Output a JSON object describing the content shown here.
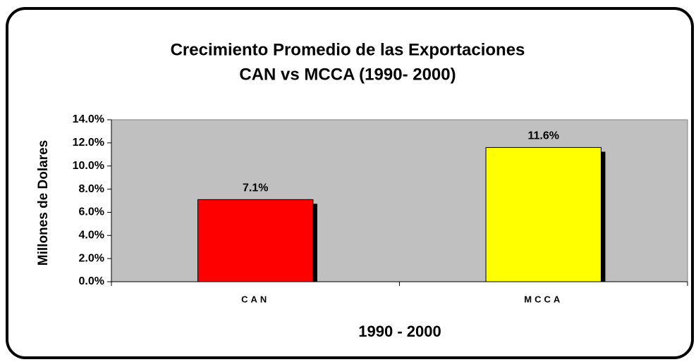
{
  "chart_data": {
    "type": "bar",
    "title": "Crecimiento Promedio de las Exportaciones",
    "subtitle": "CAN vs MCCA (1990- 2000)",
    "y_label": "Millones de Dolares",
    "x_label": "1990 - 2000",
    "categories": [
      "CAN",
      "MCCA"
    ],
    "values": [
      7.1,
      11.6
    ],
    "value_labels": [
      "7.1%",
      "11.6%"
    ],
    "colors": [
      "#ff0000",
      "#ffff00"
    ],
    "ylim": [
      0,
      14
    ],
    "yticks": [
      {
        "value": 0,
        "label": "0.0%"
      },
      {
        "value": 2,
        "label": "2.0%"
      },
      {
        "value": 4,
        "label": "4.0%"
      },
      {
        "value": 6,
        "label": "6.0%"
      },
      {
        "value": 8,
        "label": "8.0%"
      },
      {
        "value": 10,
        "label": "10.0%"
      },
      {
        "value": 12,
        "label": "12.0%"
      },
      {
        "value": 14,
        "label": "14.0%"
      }
    ],
    "grid": false
  }
}
